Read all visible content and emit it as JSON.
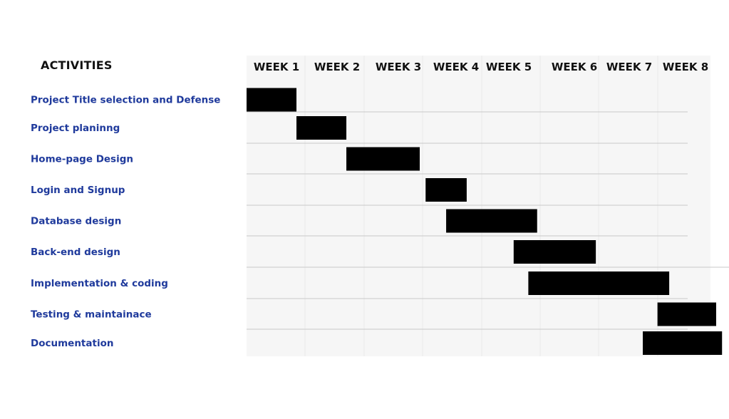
{
  "heading": "ACTIVITIES",
  "chart_data": {
    "type": "gantt",
    "x_unit": "week",
    "x_range": [
      0,
      8
    ],
    "weeks": [
      "WEEK 1",
      "WEEK 2",
      "WEEK 3",
      "WEEK 4",
      "WEEK 5",
      "WEEK 6",
      "WEEK 7",
      "WEEK 8"
    ],
    "tasks": [
      {
        "name": "Project Title selection and Defense",
        "start": 0.0,
        "end": 0.85
      },
      {
        "name": "Project planinng",
        "start": 0.85,
        "end": 1.7
      },
      {
        "name": "Home-page Design",
        "start": 1.7,
        "end": 2.95
      },
      {
        "name": "Login and Signup",
        "start": 3.05,
        "end": 3.75
      },
      {
        "name": "Database design",
        "start": 3.4,
        "end": 4.95
      },
      {
        "name": "Back-end design",
        "start": 4.55,
        "end": 5.95
      },
      {
        "name": "Implementation & coding",
        "start": 4.8,
        "end": 7.2
      },
      {
        "name": "Testing & maintainace",
        "start": 7.0,
        "end": 8.0
      },
      {
        "name": "Documentation",
        "start": 6.75,
        "end": 8.1
      }
    ],
    "bar_color": "#000000",
    "label_color": "#1f3a9c",
    "grid_background": "#f6f6f6"
  }
}
